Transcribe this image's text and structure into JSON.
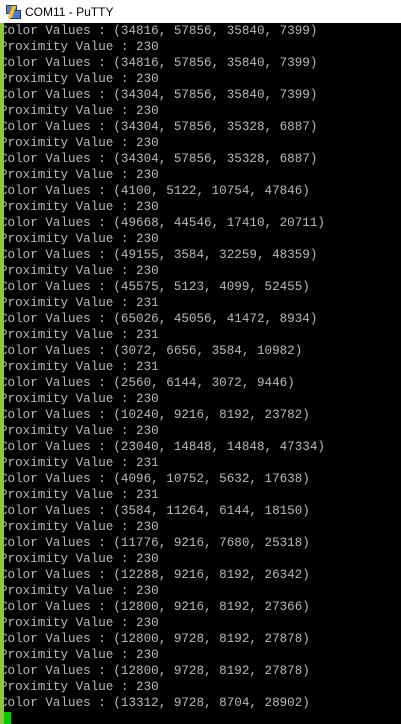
{
  "window": {
    "title": "COM11 - PuTTY",
    "icon": "putty-icon"
  },
  "terminal": {
    "text_color": "#bbbbbb",
    "background": "#000000",
    "cursor_color": "#00cc00",
    "lines": [
      "Color Values : (34816, 57856, 35840, 7399)",
      "Proximity Value : 230",
      "Color Values : (34816, 57856, 35840, 7399)",
      "Proximity Value : 230",
      "Color Values : (34304, 57856, 35840, 7399)",
      "Proximity Value : 230",
      "Color Values : (34304, 57856, 35328, 6887)",
      "Proximity Value : 230",
      "Color Values : (34304, 57856, 35328, 6887)",
      "Proximity Value : 230",
      "Color Values : (4100, 5122, 10754, 47846)",
      "Proximity Value : 230",
      "Color Values : (49668, 44546, 17410, 20711)",
      "Proximity Value : 230",
      "Color Values : (49155, 3584, 32259, 48359)",
      "Proximity Value : 230",
      "Color Values : (45575, 5123, 4099, 52455)",
      "Proximity Value : 231",
      "Color Values : (65026, 45056, 41472, 8934)",
      "Proximity Value : 231",
      "Color Values : (3072, 6656, 3584, 10982)",
      "Proximity Value : 231",
      "Color Values : (2560, 6144, 3072, 9446)",
      "Proximity Value : 230",
      "Color Values : (10240, 9216, 8192, 23782)",
      "Proximity Value : 230",
      "Color Values : (23040, 14848, 14848, 47334)",
      "Proximity Value : 231",
      "Color Values : (4096, 10752, 5632, 17638)",
      "Proximity Value : 231",
      "Color Values : (3584, 11264, 6144, 18150)",
      "Proximity Value : 230",
      "Color Values : (11776, 9216, 7680, 25318)",
      "Proximity Value : 230",
      "Color Values : (12288, 9216, 8192, 26342)",
      "Proximity Value : 230",
      "Color Values : (12800, 9216, 8192, 27366)",
      "Proximity Value : 230",
      "Color Values : (12800, 9728, 8192, 27878)",
      "Proximity Value : 230",
      "Color Values : (12800, 9728, 8192, 27878)",
      "Proximity Value : 230",
      "Color Values : (13312, 9728, 8704, 28902)"
    ]
  }
}
